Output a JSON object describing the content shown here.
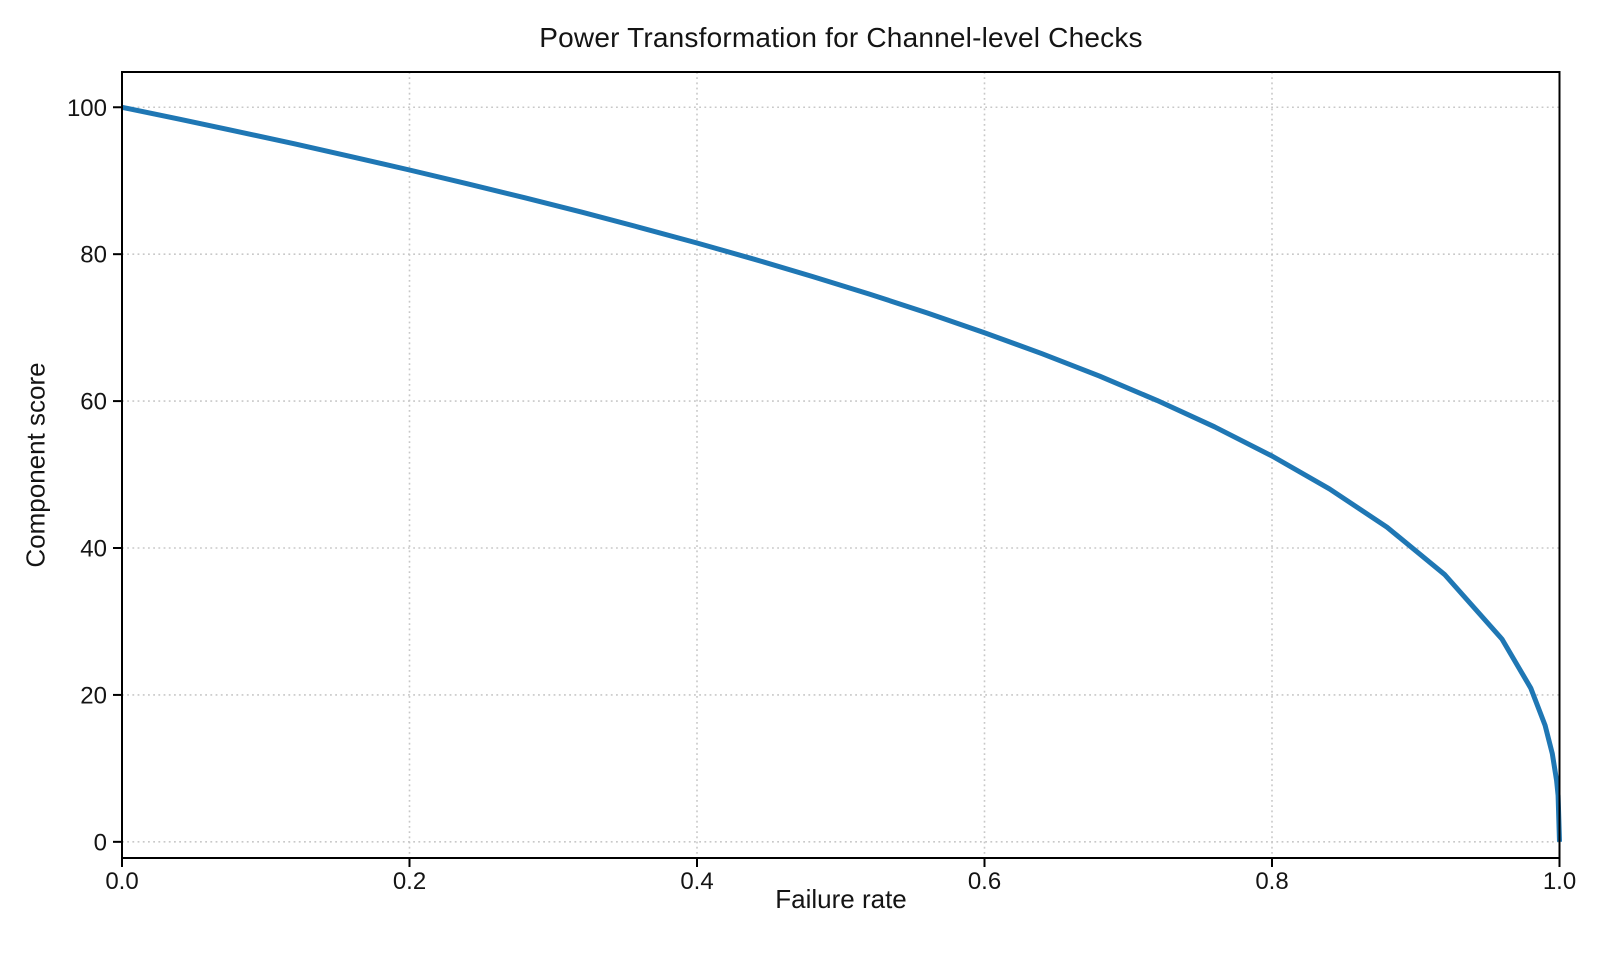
{
  "chart_data": {
    "type": "line",
    "title": "Power Transformation for Channel-level Checks",
    "xlabel": "Failure rate",
    "ylabel": "Component score",
    "xlim": [
      0.0,
      1.0
    ],
    "ylim": [
      -2.2,
      104.8
    ],
    "xticks": [
      0.0,
      0.2,
      0.4,
      0.6,
      0.8,
      1.0
    ],
    "xtick_labels": [
      "0.0",
      "0.2",
      "0.4",
      "0.6",
      "0.8",
      "1.0"
    ],
    "yticks": [
      0,
      20,
      40,
      60,
      80,
      100
    ],
    "ytick_labels": [
      "0",
      "20",
      "40",
      "60",
      "80",
      "100"
    ],
    "grid": true,
    "grid_style": "dotted",
    "legend": "none",
    "curve_model": "score = 100 * (1 - failure_rate)^0.4",
    "series": [
      {
        "name": "Component score",
        "color": "#1f77b4",
        "x": [
          0.0,
          0.04,
          0.08,
          0.12,
          0.16,
          0.2,
          0.24,
          0.28,
          0.32,
          0.36,
          0.4,
          0.44,
          0.48,
          0.52,
          0.56,
          0.6,
          0.64,
          0.68,
          0.72,
          0.76,
          0.8,
          0.84,
          0.88,
          0.92,
          0.96,
          0.98,
          0.99,
          0.995,
          0.998,
          0.999,
          1.0
        ],
        "y": [
          100.0,
          98.38,
          96.72,
          95.02,
          93.26,
          91.46,
          89.6,
          87.69,
          85.71,
          83.65,
          81.52,
          79.3,
          76.98,
          74.56,
          72.01,
          69.31,
          66.45,
          63.4,
          60.1,
          56.5,
          52.53,
          48.05,
          42.83,
          36.41,
          27.6,
          20.91,
          15.85,
          12.01,
          8.33,
          6.31,
          0.0
        ]
      }
    ]
  },
  "style": {
    "line_color": "#1f77b4",
    "grid_color": "#c8c8c8",
    "axis_color": "#000000",
    "text_color": "#141414",
    "background": "#ffffff"
  }
}
